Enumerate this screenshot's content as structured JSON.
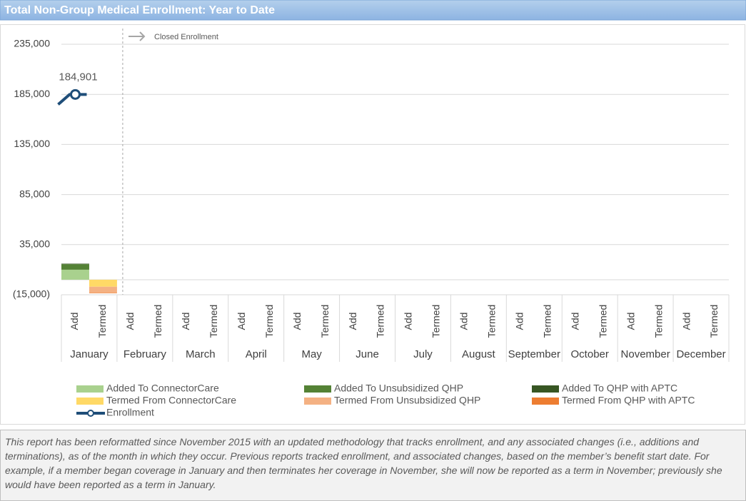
{
  "chart_data": {
    "type": "bar",
    "title": "Total Non-Group Medical Enrollment: Year to Date",
    "annotation": "Closed Enrollment",
    "categories": [
      "Add",
      "Termed",
      "Add",
      "Termed",
      "Add",
      "Termed",
      "Add",
      "Termed",
      "Add",
      "Termed",
      "Add",
      "Termed",
      "Add",
      "Termed",
      "Add",
      "Termed",
      "Add",
      "Termed",
      "Add",
      "Termed",
      "Add",
      "Termed",
      "Add",
      "Termed"
    ],
    "groups": [
      "January",
      "February",
      "March",
      "April",
      "May",
      "June",
      "July",
      "August",
      "September",
      "October",
      "November",
      "December"
    ],
    "series": [
      {
        "name": "Added To ConnectorCare",
        "color": "#a9d18e",
        "values": [
          10000,
          null,
          null,
          null,
          null,
          null,
          null,
          null,
          null,
          null,
          null,
          null,
          null,
          null,
          null,
          null,
          null,
          null,
          null,
          null,
          null,
          null,
          null,
          null
        ]
      },
      {
        "name": "Added To Unsubsidized QHP",
        "color": "#548235",
        "values": [
          5500,
          null,
          null,
          null,
          null,
          null,
          null,
          null,
          null,
          null,
          null,
          null,
          null,
          null,
          null,
          null,
          null,
          null,
          null,
          null,
          null,
          null,
          null,
          null
        ]
      },
      {
        "name": "Added To QHP with APTC",
        "color": "#375623",
        "values": [
          500,
          null,
          null,
          null,
          null,
          null,
          null,
          null,
          null,
          null,
          null,
          null,
          null,
          null,
          null,
          null,
          null,
          null,
          null,
          null,
          null,
          null,
          null,
          null
        ]
      },
      {
        "name": "Termed From ConnectorCare",
        "color": "#ffd966",
        "values": [
          null,
          -7000,
          null,
          null,
          null,
          null,
          null,
          null,
          null,
          null,
          null,
          null,
          null,
          null,
          null,
          null,
          null,
          null,
          null,
          null,
          null,
          null,
          null,
          null
        ]
      },
      {
        "name": "Termed From Unsubsidized QHP",
        "color": "#f4b183",
        "values": [
          null,
          -6000,
          null,
          null,
          null,
          null,
          null,
          null,
          null,
          null,
          null,
          null,
          null,
          null,
          null,
          null,
          null,
          null,
          null,
          null,
          null,
          null,
          null,
          null
        ]
      },
      {
        "name": "Termed From QHP with APTC",
        "color": "#ed7d31",
        "values": [
          null,
          -500,
          null,
          null,
          null,
          null,
          null,
          null,
          null,
          null,
          null,
          null,
          null,
          null,
          null,
          null,
          null,
          null,
          null,
          null,
          null,
          null,
          null,
          null
        ]
      },
      {
        "name": "Enrollment",
        "type": "line",
        "color": "#1f4e79",
        "values": [
          184901,
          null,
          null,
          null,
          null,
          null,
          null,
          null,
          null,
          null,
          null,
          null,
          null,
          null,
          null,
          null,
          null,
          null,
          null,
          null,
          null,
          null,
          null,
          null
        ],
        "value_labels": [
          "184,901",
          null,
          null,
          null,
          null,
          null,
          null,
          null,
          null,
          null,
          null,
          null,
          null,
          null,
          null,
          null,
          null,
          null,
          null,
          null,
          null,
          null,
          null,
          null
        ]
      }
    ],
    "ylim": [
      -15000,
      235000
    ],
    "yticks": [
      {
        "value": -15000,
        "label": "(15,000)"
      },
      {
        "value": 35000,
        "label": "35,000"
      },
      {
        "value": 85000,
        "label": "85,000"
      },
      {
        "value": 135000,
        "label": "135,000"
      },
      {
        "value": 185000,
        "label": "185,000"
      },
      {
        "value": 235000,
        "label": "235,000"
      }
    ],
    "grid": true
  },
  "note": "This report has been reformatted since November 2015 with an updated methodology that tracks enrollment, and any associated changes (i.e., additions and terminations), as of the month in which they occur.  Previous reports tracked enrollment, and associated changes, based on the member’s benefit start date.  For example, if a member began coverage in January and then terminates her coverage in November, she will now be reported as a term in November; previously she would have been reported as a term in January."
}
